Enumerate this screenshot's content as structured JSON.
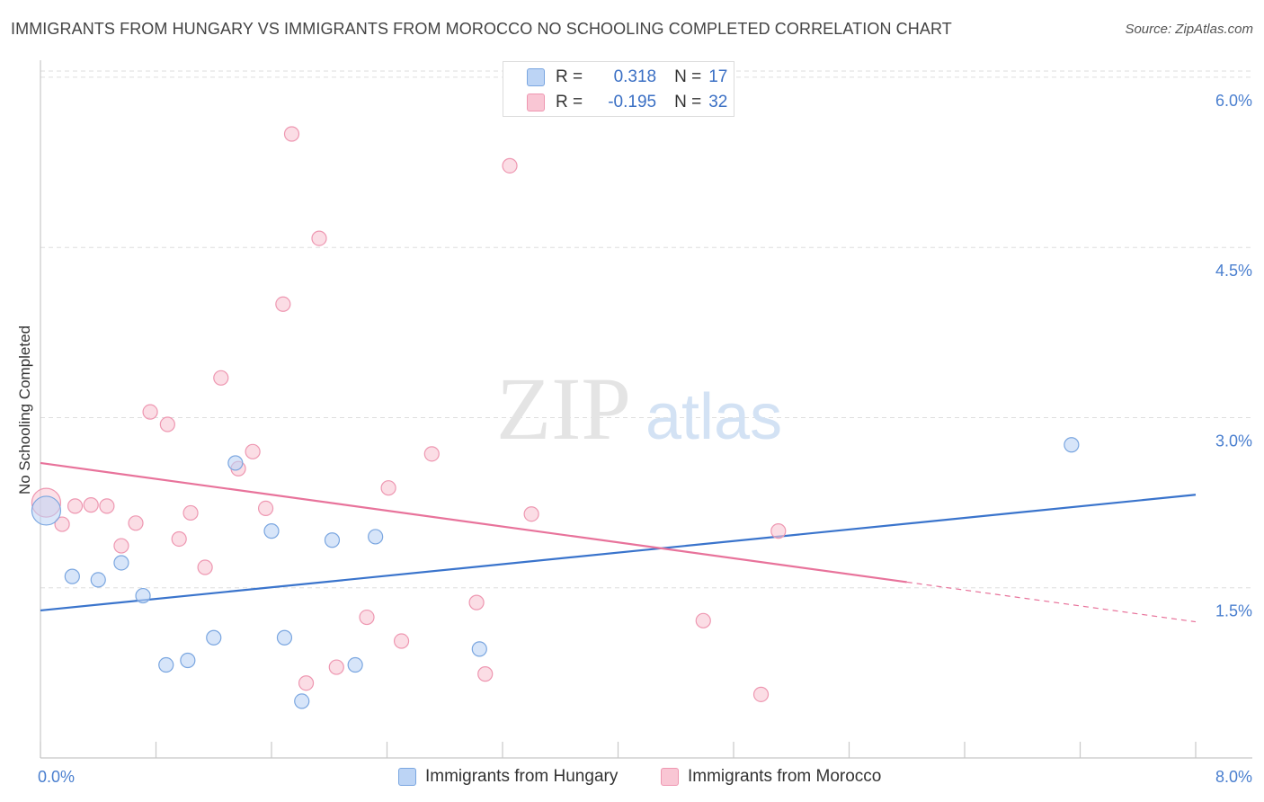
{
  "title": "IMMIGRANTS FROM HUNGARY VS IMMIGRANTS FROM MOROCCO NO SCHOOLING COMPLETED CORRELATION CHART",
  "source": "Source: ZipAtlas.com",
  "watermark": {
    "zip": "ZIP",
    "atlas": "atlas"
  },
  "colors": {
    "hungary_fill": "#bcd4f5",
    "hungary_stroke": "#7aa6e0",
    "hungary_line": "#3a74cc",
    "morocco_fill": "#f9c6d4",
    "morocco_stroke": "#ee97b1",
    "morocco_line": "#e8739b",
    "tick_label": "#4a7fcf",
    "grid": "#dedede"
  },
  "stats": {
    "rows": [
      {
        "r_label": "R =",
        "r_value": "0.318",
        "n_label": "N =",
        "n_value": "17"
      },
      {
        "r_label": "R =",
        "r_value": "-0.195",
        "n_label": "N =",
        "n_value": "32"
      }
    ]
  },
  "chart_data": {
    "type": "scatter",
    "title": "IMMIGRANTS FROM HUNGARY VS IMMIGRANTS FROM MOROCCO NO SCHOOLING COMPLETED CORRELATION CHART",
    "xlabel": "",
    "ylabel": "No Schooling Completed",
    "xlim": [
      0,
      8
    ],
    "ylim": [
      0,
      6.15
    ],
    "x_tick_labels": [
      {
        "value": 0,
        "label": "0.0%"
      },
      {
        "value": 8,
        "label": "8.0%"
      }
    ],
    "y_ticks": [
      {
        "value": 1.5,
        "label": "1.5%"
      },
      {
        "value": 3.0,
        "label": "3.0%"
      },
      {
        "value": 4.5,
        "label": "4.5%"
      },
      {
        "value": 6.0,
        "label": "6.0%"
      }
    ],
    "grid": true,
    "legend_position": "bottom",
    "series": [
      {
        "name": "Immigrants from Hungary",
        "points": [
          {
            "x": 0.04,
            "y": 2.18,
            "big": true
          },
          {
            "x": 0.22,
            "y": 1.6
          },
          {
            "x": 0.4,
            "y": 1.57
          },
          {
            "x": 0.56,
            "y": 1.72
          },
          {
            "x": 0.71,
            "y": 1.43
          },
          {
            "x": 0.87,
            "y": 0.82
          },
          {
            "x": 1.02,
            "y": 0.86
          },
          {
            "x": 1.2,
            "y": 1.06
          },
          {
            "x": 1.35,
            "y": 2.6
          },
          {
            "x": 1.6,
            "y": 2.0
          },
          {
            "x": 1.69,
            "y": 1.06
          },
          {
            "x": 1.81,
            "y": 0.5
          },
          {
            "x": 2.02,
            "y": 1.92
          },
          {
            "x": 2.18,
            "y": 0.82
          },
          {
            "x": 2.32,
            "y": 1.95
          },
          {
            "x": 3.04,
            "y": 0.96
          },
          {
            "x": 7.14,
            "y": 2.76
          }
        ],
        "trend": {
          "x0": 0,
          "y0": 1.3,
          "x1": 8,
          "y1": 2.32
        }
      },
      {
        "name": "Immigrants from Morocco",
        "points": [
          {
            "x": 0.04,
            "y": 2.25,
            "big": true
          },
          {
            "x": 0.15,
            "y": 2.06
          },
          {
            "x": 0.24,
            "y": 2.22
          },
          {
            "x": 0.35,
            "y": 2.23
          },
          {
            "x": 0.46,
            "y": 2.22
          },
          {
            "x": 0.56,
            "y": 1.87
          },
          {
            "x": 0.66,
            "y": 2.07
          },
          {
            "x": 0.76,
            "y": 3.05
          },
          {
            "x": 0.88,
            "y": 2.94
          },
          {
            "x": 0.96,
            "y": 1.93
          },
          {
            "x": 1.04,
            "y": 2.16
          },
          {
            "x": 1.14,
            "y": 1.68
          },
          {
            "x": 1.25,
            "y": 3.35
          },
          {
            "x": 1.37,
            "y": 2.55
          },
          {
            "x": 1.47,
            "y": 2.7
          },
          {
            "x": 1.56,
            "y": 2.2
          },
          {
            "x": 1.68,
            "y": 4.0
          },
          {
            "x": 1.74,
            "y": 5.5
          },
          {
            "x": 1.84,
            "y": 0.66
          },
          {
            "x": 1.93,
            "y": 4.58
          },
          {
            "x": 2.05,
            "y": 0.8
          },
          {
            "x": 2.26,
            "y": 1.24
          },
          {
            "x": 2.41,
            "y": 2.38
          },
          {
            "x": 2.5,
            "y": 1.03
          },
          {
            "x": 2.71,
            "y": 2.68
          },
          {
            "x": 3.02,
            "y": 1.37
          },
          {
            "x": 3.08,
            "y": 0.74
          },
          {
            "x": 3.25,
            "y": 5.22
          },
          {
            "x": 3.4,
            "y": 2.15
          },
          {
            "x": 4.59,
            "y": 1.21
          },
          {
            "x": 4.99,
            "y": 0.56
          },
          {
            "x": 5.11,
            "y": 2.0
          }
        ],
        "trend": {
          "x0": 0,
          "y0": 2.6,
          "x1": 6.0,
          "y1": 1.55,
          "dash_x1": 8,
          "dash_y1": 1.2
        }
      }
    ]
  }
}
